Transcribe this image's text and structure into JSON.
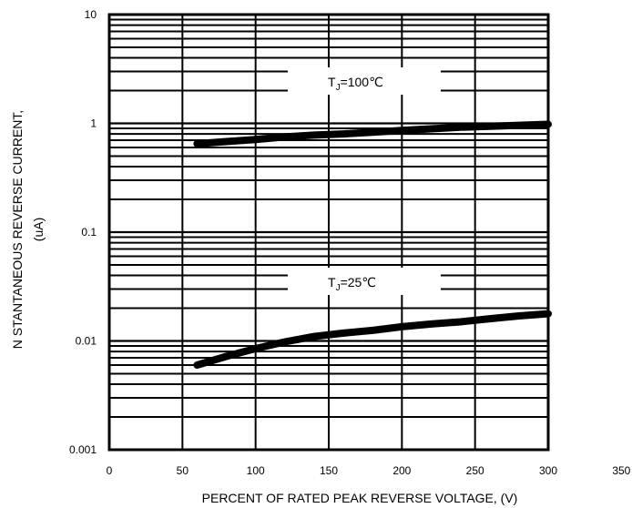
{
  "chart_data": {
    "type": "line",
    "title": "",
    "xlabel": "PERCENT OF RATED PEAK REVERSE VOLTAGE, (V)",
    "ylabel_line1": "N STANTANEOUS REVERSE CURRENT,",
    "ylabel_line2": "(uA)",
    "x_scale": "linear",
    "y_scale": "log",
    "xlim": [
      0,
      350
    ],
    "ylim": [
      0.001,
      10
    ],
    "x_ticks": [
      0,
      50,
      100,
      150,
      200,
      250,
      300,
      350
    ],
    "x_tick_labels": [
      "0",
      "50",
      "100",
      "150",
      "200",
      "250",
      "300",
      "350"
    ],
    "y_ticks": [
      0.001,
      0.01,
      0.1,
      1,
      10
    ],
    "y_tick_labels": [
      "0.001",
      "0.01",
      "0.1",
      "1",
      "10"
    ],
    "grid": true,
    "series": [
      {
        "annotation": "T",
        "annotation_sub": "J",
        "annotation_rest": "=100℃",
        "color": "#000000",
        "x": [
          60,
          80,
          100,
          120,
          140,
          160,
          180,
          200,
          220,
          240,
          260,
          280,
          300
        ],
        "y": [
          0.65,
          0.68,
          0.71,
          0.75,
          0.78,
          0.8,
          0.83,
          0.86,
          0.89,
          0.92,
          0.94,
          0.96,
          0.98
        ]
      },
      {
        "annotation": "T",
        "annotation_sub": "J",
        "annotation_rest": "=25℃",
        "color": "#000000",
        "x": [
          60,
          80,
          100,
          120,
          140,
          160,
          180,
          200,
          220,
          240,
          260,
          280,
          300
        ],
        "y": [
          0.006,
          0.0072,
          0.0085,
          0.0098,
          0.011,
          0.0118,
          0.0125,
          0.0135,
          0.0143,
          0.015,
          0.016,
          0.017,
          0.0178
        ]
      }
    ]
  }
}
